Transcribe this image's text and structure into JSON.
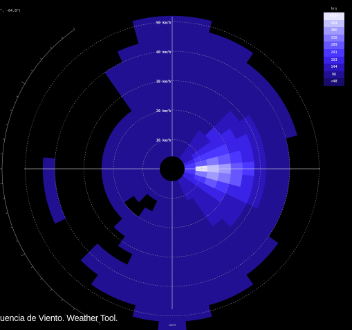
{
  "coordinates_text": "°, -64.8°)",
  "caption": "uencia de Viento. Weather Tool.",
  "colors": {
    "background": "#000000",
    "grid": "#9a9aa8",
    "hole": "#000000"
  },
  "legend": {
    "unit": "hrs",
    "entries": [
      {
        "label": "483+",
        "color": "#e6e4ff"
      },
      {
        "label": "434",
        "color": "#c3c0ff"
      },
      {
        "label": "386",
        "color": "#a09aff"
      },
      {
        "label": "338",
        "color": "#8277ff"
      },
      {
        "label": "289",
        "color": "#6656ff"
      },
      {
        "label": "241",
        "color": "#4b37ff"
      },
      {
        "label": "193",
        "color": "#3a22e6"
      },
      {
        "label": "144",
        "color": "#2c16bb"
      },
      {
        "label": "96",
        "color": "#221093"
      },
      {
        "label": "<48",
        "color": "#180b6e"
      }
    ]
  },
  "chart_data": {
    "type": "heatmap",
    "subtype": "wind-frequency-rose",
    "value_unit": "hrs",
    "radial_unit": "km/h",
    "ring_labels": [
      "10 km/h",
      "20 km/h",
      "30 km/h",
      "40 km/h",
      "50 km/h"
    ],
    "compass_label_bottom": "SOUTH",
    "bin_width_deg": 10,
    "speed_bins_kmh": [
      [
        4,
        8
      ],
      [
        8,
        12
      ],
      [
        12,
        16
      ],
      [
        16,
        20
      ],
      [
        20,
        24
      ],
      [
        24,
        28
      ],
      [
        28,
        32
      ],
      [
        32,
        36
      ],
      [
        36,
        40
      ],
      [
        40,
        44
      ],
      [
        44,
        48
      ],
      [
        48,
        52
      ],
      [
        52,
        56
      ]
    ],
    "direction_bins_deg_clockwise_from_north": [
      0,
      10,
      20,
      30,
      40,
      50,
      60,
      70,
      80,
      90,
      100,
      110,
      120,
      130,
      140,
      150,
      160,
      170,
      180,
      190,
      200,
      210,
      220,
      230,
      240,
      250,
      260,
      270,
      280,
      290,
      300,
      310,
      320,
      330,
      340,
      350
    ],
    "cells_hrs": [
      [
        96,
        96,
        96,
        96,
        96,
        96,
        96,
        96,
        96,
        96,
        96,
        96,
        0
      ],
      [
        96,
        96,
        96,
        96,
        96,
        96,
        96,
        96,
        96,
        96,
        96,
        96,
        0
      ],
      [
        96,
        96,
        96,
        96,
        96,
        96,
        96,
        96,
        96,
        96,
        96,
        0,
        0
      ],
      [
        96,
        96,
        96,
        96,
        96,
        96,
        96,
        96,
        96,
        96,
        96,
        0,
        0
      ],
      [
        144,
        144,
        144,
        96,
        96,
        96,
        96,
        96,
        96,
        96,
        0,
        0,
        0
      ],
      [
        144,
        144,
        144,
        193,
        144,
        144,
        96,
        96,
        96,
        96,
        0,
        0,
        0
      ],
      [
        144,
        193,
        193,
        193,
        193,
        144,
        144,
        96,
        96,
        96,
        0,
        0,
        0
      ],
      [
        193,
        241,
        241,
        241,
        193,
        193,
        144,
        96,
        96,
        96,
        0,
        0,
        0
      ],
      [
        241,
        289,
        338,
        289,
        241,
        193,
        144,
        96,
        96,
        0,
        0,
        0,
        0
      ],
      [
        241,
        483,
        434,
        386,
        289,
        241,
        144,
        96,
        96,
        0,
        0,
        0,
        0
      ],
      [
        241,
        338,
        386,
        338,
        289,
        193,
        144,
        96,
        96,
        0,
        0,
        0,
        0
      ],
      [
        193,
        241,
        289,
        241,
        193,
        193,
        144,
        96,
        96,
        0,
        0,
        0,
        0
      ],
      [
        193,
        193,
        193,
        193,
        144,
        144,
        96,
        96,
        96,
        0,
        0,
        0,
        0
      ],
      [
        144,
        144,
        144,
        144,
        144,
        144,
        96,
        96,
        96,
        96,
        0,
        0,
        0
      ],
      [
        144,
        144,
        144,
        144,
        144,
        96,
        96,
        96,
        96,
        96,
        0,
        0,
        0
      ],
      [
        144,
        144,
        96,
        96,
        96,
        96,
        96,
        96,
        96,
        96,
        96,
        0,
        0
      ],
      [
        96,
        96,
        96,
        96,
        96,
        96,
        96,
        96,
        96,
        96,
        96,
        0,
        0
      ],
      [
        96,
        96,
        96,
        96,
        96,
        96,
        96,
        96,
        96,
        96,
        96,
        96,
        0
      ],
      [
        96,
        96,
        96,
        96,
        96,
        96,
        96,
        96,
        96,
        96,
        96,
        96,
        96
      ],
      [
        96,
        96,
        96,
        96,
        96,
        96,
        96,
        96,
        96,
        96,
        96,
        96,
        0
      ],
      [
        96,
        96,
        96,
        96,
        96,
        96,
        96,
        96,
        96,
        96,
        96,
        0,
        0
      ],
      [
        96,
        96,
        0,
        96,
        96,
        96,
        96,
        0,
        96,
        96,
        96,
        0,
        0
      ],
      [
        96,
        96,
        0,
        0,
        96,
        96,
        0,
        0,
        96,
        96,
        0,
        0,
        0
      ],
      [
        96,
        96,
        96,
        0,
        96,
        0,
        0,
        0,
        0,
        0,
        0,
        0,
        0
      ],
      [
        96,
        96,
        96,
        96,
        96,
        0,
        0,
        0,
        0,
        0,
        0,
        0,
        0
      ],
      [
        96,
        96,
        96,
        96,
        96,
        0,
        0,
        0,
        0,
        96,
        0,
        0,
        0
      ],
      [
        96,
        96,
        96,
        96,
        96,
        0,
        0,
        0,
        0,
        96,
        0,
        0,
        0
      ],
      [
        96,
        96,
        96,
        96,
        96,
        0,
        0,
        0,
        0,
        96,
        0,
        0,
        0
      ],
      [
        96,
        96,
        96,
        96,
        96,
        0,
        0,
        0,
        0,
        0,
        0,
        0,
        0
      ],
      [
        96,
        96,
        96,
        96,
        96,
        0,
        0,
        0,
        0,
        0,
        0,
        0,
        0
      ],
      [
        96,
        96,
        96,
        96,
        96,
        0,
        0,
        0,
        0,
        0,
        0,
        0,
        0
      ],
      [
        96,
        96,
        96,
        96,
        96,
        0,
        0,
        0,
        0,
        0,
        0,
        0,
        0
      ],
      [
        96,
        96,
        96,
        96,
        96,
        0,
        0,
        0,
        0,
        0,
        0,
        0,
        0
      ],
      [
        96,
        96,
        96,
        96,
        96,
        96,
        96,
        96,
        96,
        0,
        0,
        0,
        0
      ],
      [
        96,
        96,
        96,
        96,
        96,
        96,
        96,
        96,
        96,
        96,
        0,
        0,
        0
      ],
      [
        96,
        96,
        96,
        96,
        96,
        96,
        96,
        96,
        96,
        96,
        96,
        96,
        0
      ]
    ],
    "grid": true,
    "legend_position": "top-right"
  }
}
